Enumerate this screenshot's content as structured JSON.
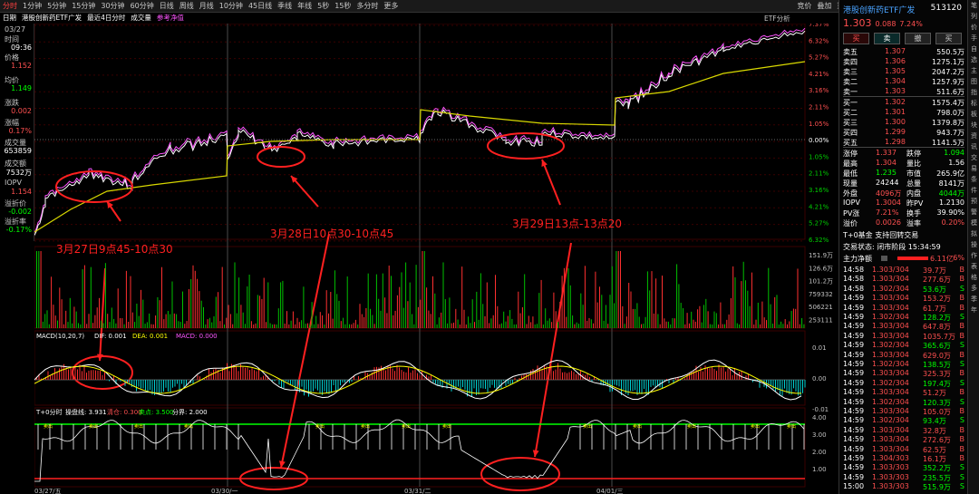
{
  "toolbar": {
    "left_items": [
      "分时",
      "1分钟",
      "5分钟",
      "15分钟",
      "30分钟",
      "60分钟",
      "日线",
      "周线",
      "月线",
      "10分钟",
      "45日线",
      "季线",
      "年线",
      "5秒",
      "15秒",
      "多分时",
      "更多"
    ],
    "right_items": [
      "竞价",
      "叠加",
      "重播",
      "画线",
      "统计",
      "F10",
      "标记",
      "-自选",
      "返回"
    ]
  },
  "subbar": {
    "date_label": "日期",
    "name": "港股创新药ETF广发",
    "range": "最近4日分时",
    "volume": "成交量",
    "reference": "参考净值",
    "etf": "ETF分析"
  },
  "left_info": [
    {
      "label": "03/27",
      "value": "",
      "color": "#c8c8c8"
    },
    {
      "label": "时间",
      "value": "09:36",
      "color": "#ffffff"
    },
    {
      "label": "价格",
      "value": "1.152",
      "color": "#ff5050"
    },
    {
      "label": "均价",
      "value": "1.149",
      "color": "#00ff00"
    },
    {
      "label": "涨跌",
      "value": "0.002",
      "color": "#ff5050"
    },
    {
      "label": "涨幅",
      "value": "0.17%",
      "color": "#ff5050"
    },
    {
      "label": "成交量",
      "value": "653859",
      "color": "#ffffff"
    },
    {
      "label": "成交额",
      "value": "7532万",
      "color": "#ffffff"
    },
    {
      "label": "IOPV",
      "value": "1.154",
      "color": "#ff5050"
    },
    {
      "label": "溢折价",
      "value": "-0.002",
      "color": "#00ff00"
    },
    {
      "label": "溢折率",
      "value": "-0.17%",
      "color": "#00ff00"
    }
  ],
  "price_axis_left": [
    "1.375",
    "1.354",
    "1.333",
    "1.312",
    "1.291",
    "1.270",
    "1.249",
    "1.228",
    "1.207",
    "1.186",
    "1.165",
    "1.144",
    "1.123"
  ],
  "pct_axis_right": [
    "7.37%",
    "6.32%",
    "5.27%",
    "4.21%",
    "3.16%",
    "2.11%",
    "1.05%",
    "0.00%",
    "1.05%",
    "2.11%",
    "3.16%",
    "4.21%",
    "5.27%",
    "6.32%"
  ],
  "volume_axis_left": [
    "151.9万",
    "126.6万",
    "101.2万",
    "759332",
    "506221",
    "253111"
  ],
  "volume_axis_right": [
    "151.9万",
    "126.6万",
    "101.2万",
    "759332",
    "506221",
    "253111"
  ],
  "macd": {
    "title": "MACD(10,20,7)",
    "dif": "DIF: 0.001",
    "dea": "DEA: 0.001",
    "macd": "MACD: 0.000",
    "axis": [
      "0.01",
      "0.00",
      "-0.01"
    ]
  },
  "t0": {
    "title": "T+0分时",
    "line": "操盘线: 3.931",
    "low": "清仓: 0.300",
    "sell": "卖点: 3.500",
    "boundary": "分界: 2.000",
    "axis": [
      "4.00",
      "3.00",
      "2.00",
      "1.00"
    ],
    "signal_label": "卖出"
  },
  "dates": [
    "03/27/五",
    "03/30/一",
    "03/31/二",
    "04/01/三"
  ],
  "annotations": [
    "3月27日9点45-10点30",
    "3月28日10点30-10点45",
    "3月29日13点-13点20"
  ],
  "right_panel": {
    "title": "港股创新药ETF广发",
    "code": "513120",
    "price": "1.303",
    "change": "0.088",
    "change_pct": "7.24%",
    "buttons": [
      "买",
      "卖",
      "撤",
      "买"
    ],
    "asks": [
      {
        "label": "卖五",
        "price": "1.307",
        "vol": "550.5万"
      },
      {
        "label": "卖四",
        "price": "1.306",
        "vol": "1275.1万"
      },
      {
        "label": "卖三",
        "price": "1.305",
        "vol": "2047.2万"
      },
      {
        "label": "卖二",
        "price": "1.304",
        "vol": "1257.9万"
      },
      {
        "label": "卖一",
        "price": "1.303",
        "vol": "511.6万"
      }
    ],
    "bids": [
      {
        "label": "买一",
        "price": "1.302",
        "vol": "1575.4万"
      },
      {
        "label": "买二",
        "price": "1.301",
        "vol": "798.0万"
      },
      {
        "label": "买三",
        "price": "1.300",
        "vol": "1379.8万"
      },
      {
        "label": "买四",
        "price": "1.299",
        "vol": "943.7万"
      },
      {
        "label": "买五",
        "price": "1.298",
        "vol": "1141.5万"
      }
    ],
    "stats": [
      {
        "l1": "涨停",
        "v1": "1.337",
        "l2": "跌停",
        "v2": "1.094"
      },
      {
        "l1": "最高",
        "v1": "1.304",
        "l2": "量比",
        "v2": "1.56"
      },
      {
        "l1": "最低",
        "v1": "1.235",
        "l2": "市值",
        "v2": "265.9亿"
      },
      {
        "l1": "现量",
        "v1": "24244",
        "l2": "总量",
        "v2": "8141万"
      },
      {
        "l1": "外盘",
        "v1": "4096万",
        "l2": "内盘",
        "v2": "4044万"
      },
      {
        "l1": "IOPV",
        "v1": "1.3004",
        "l2": "昨PV",
        "v2": "1.2130"
      },
      {
        "l1": "PV涨",
        "v1": "7.21%",
        "l2": "换手",
        "v2": "39.90%"
      },
      {
        "l1": "溢价",
        "v1": "0.0026",
        "l2": "溢率",
        "v2": "0.20%"
      }
    ],
    "t0_fund": "T+0基金 支持回转交易",
    "trade_status": "交易状态: 闭市阶段 15:34:59",
    "main_flow_label": "主力净额",
    "main_flow_value": "6.11亿",
    "main_flow_pct": "6%",
    "ticks": [
      {
        "t": "14:58",
        "p": "1.303/304",
        "v": "39.7万",
        "s": "B"
      },
      {
        "t": "14:58",
        "p": "1.303/304",
        "v": "277.6万",
        "s": "B"
      },
      {
        "t": "14:58",
        "p": "1.302/304",
        "v": "53.6万",
        "s": "S"
      },
      {
        "t": "14:59",
        "p": "1.303/304",
        "v": "153.2万",
        "s": "B"
      },
      {
        "t": "14:59",
        "p": "1.303/304",
        "v": "61.7万",
        "s": "B"
      },
      {
        "t": "14:59",
        "p": "1.302/304",
        "v": "128.2万",
        "s": "S"
      },
      {
        "t": "14:59",
        "p": "1.303/304",
        "v": "647.8万",
        "s": "B"
      },
      {
        "t": "14:59",
        "p": "1.303/304",
        "v": "1035.7万",
        "s": "B"
      },
      {
        "t": "14:59",
        "p": "1.302/304",
        "v": "365.6万",
        "s": "S"
      },
      {
        "t": "14:59",
        "p": "1.303/304",
        "v": "629.0万",
        "s": "B"
      },
      {
        "t": "14:59",
        "p": "1.302/304",
        "v": "138.5万",
        "s": "S"
      },
      {
        "t": "14:59",
        "p": "1.303/304",
        "v": "325.3万",
        "s": "B"
      },
      {
        "t": "14:59",
        "p": "1.302/304",
        "v": "197.4万",
        "s": "S"
      },
      {
        "t": "14:59",
        "p": "1.303/304",
        "v": "51.2万",
        "s": "B"
      },
      {
        "t": "14:59",
        "p": "1.302/304",
        "v": "120.3万",
        "s": "S"
      },
      {
        "t": "14:59",
        "p": "1.303/304",
        "v": "105.0万",
        "s": "B"
      },
      {
        "t": "14:59",
        "p": "1.302/304",
        "v": "93.4万",
        "s": "S"
      },
      {
        "t": "14:59",
        "p": "1.303/304",
        "v": "32.8万",
        "s": "B"
      },
      {
        "t": "14:59",
        "p": "1.303/304",
        "v": "272.6万",
        "s": "B"
      },
      {
        "t": "14:59",
        "p": "1.303/304",
        "v": "62.5万",
        "s": "B"
      },
      {
        "t": "14:59",
        "p": "1.304/303",
        "v": "16.1万",
        "s": "B"
      },
      {
        "t": "14:59",
        "p": "1.303/303",
        "v": "352.2万",
        "s": "S"
      },
      {
        "t": "14:59",
        "p": "1.303/303",
        "v": "235.5万",
        "s": "S"
      },
      {
        "t": "15:00",
        "p": "1.303/303",
        "v": "515.9万",
        "s": "S"
      }
    ]
  },
  "sidebar": [
    "笔",
    "列",
    "价",
    "手",
    "自",
    "选",
    "主",
    "图",
    "指",
    "标",
    "板",
    "块",
    "资",
    "讯",
    "交",
    "易",
    "条",
    "件",
    "预",
    "警",
    "模",
    "拟",
    "操",
    "作",
    "表",
    "格",
    "多",
    "季",
    "年"
  ],
  "colors": {
    "up": "#ff5050",
    "down": "#00ff00",
    "price_line": "#ffffff",
    "avg_line": "#ffff00",
    "iopv_line": "#ff55ff",
    "annotation": "#ff2020"
  }
}
